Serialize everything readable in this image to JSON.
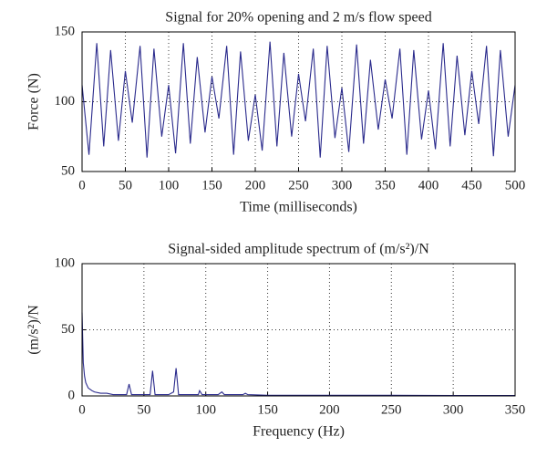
{
  "chart_data": [
    {
      "type": "line",
      "title": "Signal for 20% opening and 2 m/s flow speed",
      "x_label": "Time (milliseconds)",
      "y_label": "Force (N)",
      "xlim": [
        0,
        500
      ],
      "ylim": [
        50,
        150
      ],
      "xticks": [
        0,
        50,
        100,
        150,
        200,
        250,
        300,
        350,
        400,
        450,
        500
      ],
      "yticks": [
        50,
        100,
        150
      ],
      "grid": true,
      "series": [
        {
          "color": "#2a2a8c",
          "x": [
            0,
            8,
            17,
            25,
            33,
            42,
            50,
            58,
            67,
            75,
            83,
            92,
            100,
            108,
            117,
            125,
            133,
            142,
            150,
            158,
            167,
            175,
            183,
            192,
            200,
            208,
            217,
            225,
            233,
            242,
            250,
            258,
            267,
            275,
            283,
            292,
            300,
            308,
            317,
            325,
            333,
            342,
            350,
            358,
            367,
            375,
            383,
            392,
            400,
            408,
            417,
            425,
            433,
            442,
            450,
            458,
            467,
            475,
            483,
            492,
            500
          ],
          "values": [
            112,
            62,
            142,
            68,
            137,
            72,
            122,
            85,
            140,
            60,
            138,
            75,
            112,
            63,
            142,
            70,
            132,
            78,
            118,
            88,
            140,
            62,
            136,
            72,
            105,
            65,
            143,
            68,
            135,
            75,
            120,
            86,
            138,
            60,
            140,
            74,
            110,
            64,
            141,
            70,
            130,
            80,
            116,
            88,
            138,
            62,
            137,
            73,
            108,
            66,
            142,
            68,
            133,
            76,
            122,
            84,
            140,
            61,
            137,
            75,
            112
          ]
        }
      ]
    },
    {
      "type": "line",
      "title": "Signal-sided amplitude spectrum of (m/s²)/N",
      "x_label": "Frequency (Hz)",
      "y_label": "(m/s²)/N",
      "xlim": [
        0,
        350
      ],
      "ylim": [
        0,
        100
      ],
      "xticks": [
        0,
        50,
        100,
        150,
        200,
        250,
        300,
        350
      ],
      "yticks": [
        0,
        50,
        100
      ],
      "grid": true,
      "series": [
        {
          "color": "#2a2a8c",
          "x": [
            0,
            1,
            2,
            3,
            5,
            8,
            10,
            15,
            20,
            25,
            30,
            36,
            38,
            40,
            45,
            50,
            55,
            57,
            59,
            65,
            70,
            74,
            76,
            78,
            85,
            90,
            94,
            95,
            97,
            110,
            113,
            115,
            130,
            132,
            134,
            150,
            200,
            250,
            300,
            350
          ],
          "values": [
            63,
            25,
            15,
            10,
            6,
            4,
            3,
            2,
            2,
            1,
            1,
            1,
            9,
            1,
            1,
            1,
            1,
            19,
            1,
            1,
            1,
            3,
            21,
            1,
            1,
            1,
            1,
            4,
            1,
            1,
            3,
            1,
            1,
            2,
            1,
            0.5,
            0.5,
            0.5,
            0.3,
            0.3
          ]
        }
      ]
    }
  ]
}
